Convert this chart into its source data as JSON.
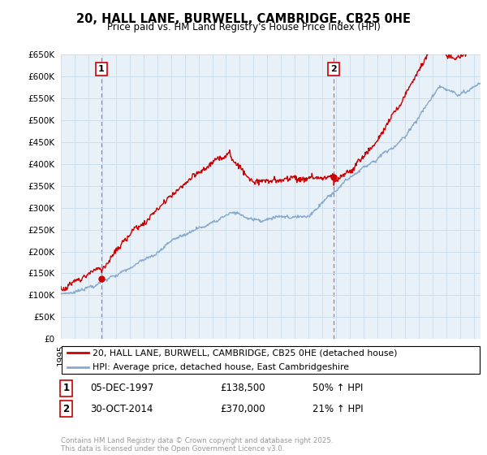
{
  "title_line1": "20, HALL LANE, BURWELL, CAMBRIDGE, CB25 0HE",
  "title_line2": "Price paid vs. HM Land Registry's House Price Index (HPI)",
  "legend_line1": "20, HALL LANE, BURWELL, CAMBRIDGE, CB25 0HE (detached house)",
  "legend_line2": "HPI: Average price, detached house, East Cambridgeshire",
  "annotation1_label": "1",
  "annotation1_date": "05-DEC-1997",
  "annotation1_price": "£138,500",
  "annotation1_hpi": "50% ↑ HPI",
  "annotation1_year": 1997.92,
  "annotation1_value": 138500,
  "annotation2_label": "2",
  "annotation2_date": "30-OCT-2014",
  "annotation2_price": "£370,000",
  "annotation2_hpi": "21% ↑ HPI",
  "annotation2_year": 2014.83,
  "annotation2_value": 370000,
  "xmin": 1995,
  "xmax": 2025.5,
  "ymin": 0,
  "ymax": 650000,
  "yticks": [
    0,
    50000,
    100000,
    150000,
    200000,
    250000,
    300000,
    350000,
    400000,
    450000,
    500000,
    550000,
    600000,
    650000
  ],
  "grid_color": "#ccddee",
  "plot_bg_color": "#e8f0f8",
  "red_color": "#cc0000",
  "blue_color": "#88aacc",
  "vline_color": "#dd6666",
  "footer_text": "Contains HM Land Registry data © Crown copyright and database right 2025.\nThis data is licensed under the Open Government Licence v3.0.",
  "background_color": "#ffffff"
}
